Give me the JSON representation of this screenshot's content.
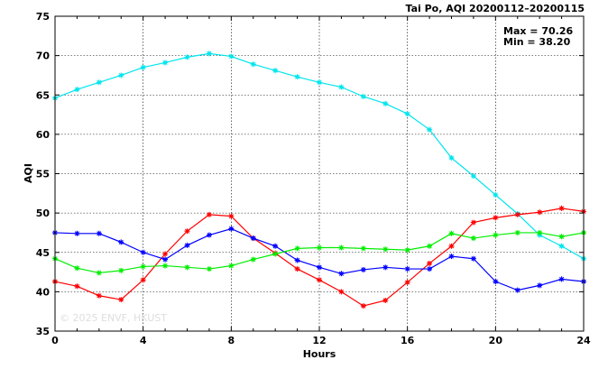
{
  "chart_data": {
    "type": "line",
    "title": "Tai Po, AQI 20200112–20200115",
    "xlabel": "Hours",
    "ylabel": "AQI",
    "xlim": [
      0,
      24
    ],
    "ylim": [
      35,
      75
    ],
    "xticks": [
      "0",
      "4",
      "8",
      "12",
      "16",
      "20",
      "24"
    ],
    "yticks": [
      "35",
      "40",
      "45",
      "50",
      "55",
      "60",
      "65",
      "70",
      "75"
    ],
    "grid": true,
    "legend": "none",
    "annotations": {
      "max": "Max = 70.26",
      "min": "Min = 38.20"
    },
    "watermark": "© 2025  ENVF, HKUST",
    "x": [
      0,
      1,
      2,
      3,
      4,
      5,
      6,
      7,
      8,
      9,
      10,
      11,
      12,
      13,
      14,
      15,
      16,
      17,
      18,
      19,
      20,
      21,
      22,
      23,
      24
    ],
    "series": [
      {
        "color": "#00e5ee",
        "values": [
          64.6,
          65.7,
          66.6,
          67.5,
          68.5,
          69.1,
          69.8,
          70.26,
          69.9,
          68.9,
          68.1,
          67.3,
          66.6,
          66.0,
          64.8,
          63.9,
          62.6,
          60.6,
          57.0,
          54.7,
          52.3,
          49.9,
          47.2,
          45.8,
          44.2
        ]
      },
      {
        "color": "#ff0000",
        "values": [
          41.3,
          40.7,
          39.5,
          39.0,
          41.5,
          44.8,
          47.7,
          49.8,
          49.6,
          46.8,
          44.9,
          42.9,
          41.5,
          40.0,
          38.2,
          38.9,
          41.2,
          43.6,
          45.8,
          48.8,
          49.4,
          49.8,
          50.1,
          50.6,
          50.2
        ]
      },
      {
        "color": "#0000ff",
        "values": [
          47.5,
          47.4,
          47.4,
          46.3,
          45.0,
          44.1,
          45.9,
          47.2,
          48.0,
          46.8,
          45.8,
          44.0,
          43.1,
          42.3,
          42.8,
          43.1,
          42.9,
          42.9,
          44.5,
          44.2,
          41.3,
          40.2,
          40.8,
          41.6,
          41.3
        ]
      },
      {
        "color": "#00ee00",
        "values": [
          44.2,
          43.0,
          42.4,
          42.7,
          43.2,
          43.3,
          43.1,
          42.9,
          43.3,
          44.1,
          44.8,
          45.5,
          45.6,
          45.6,
          45.5,
          45.4,
          45.3,
          45.8,
          47.4,
          46.8,
          47.2,
          47.5,
          47.5,
          47.0,
          47.5
        ]
      }
    ]
  }
}
